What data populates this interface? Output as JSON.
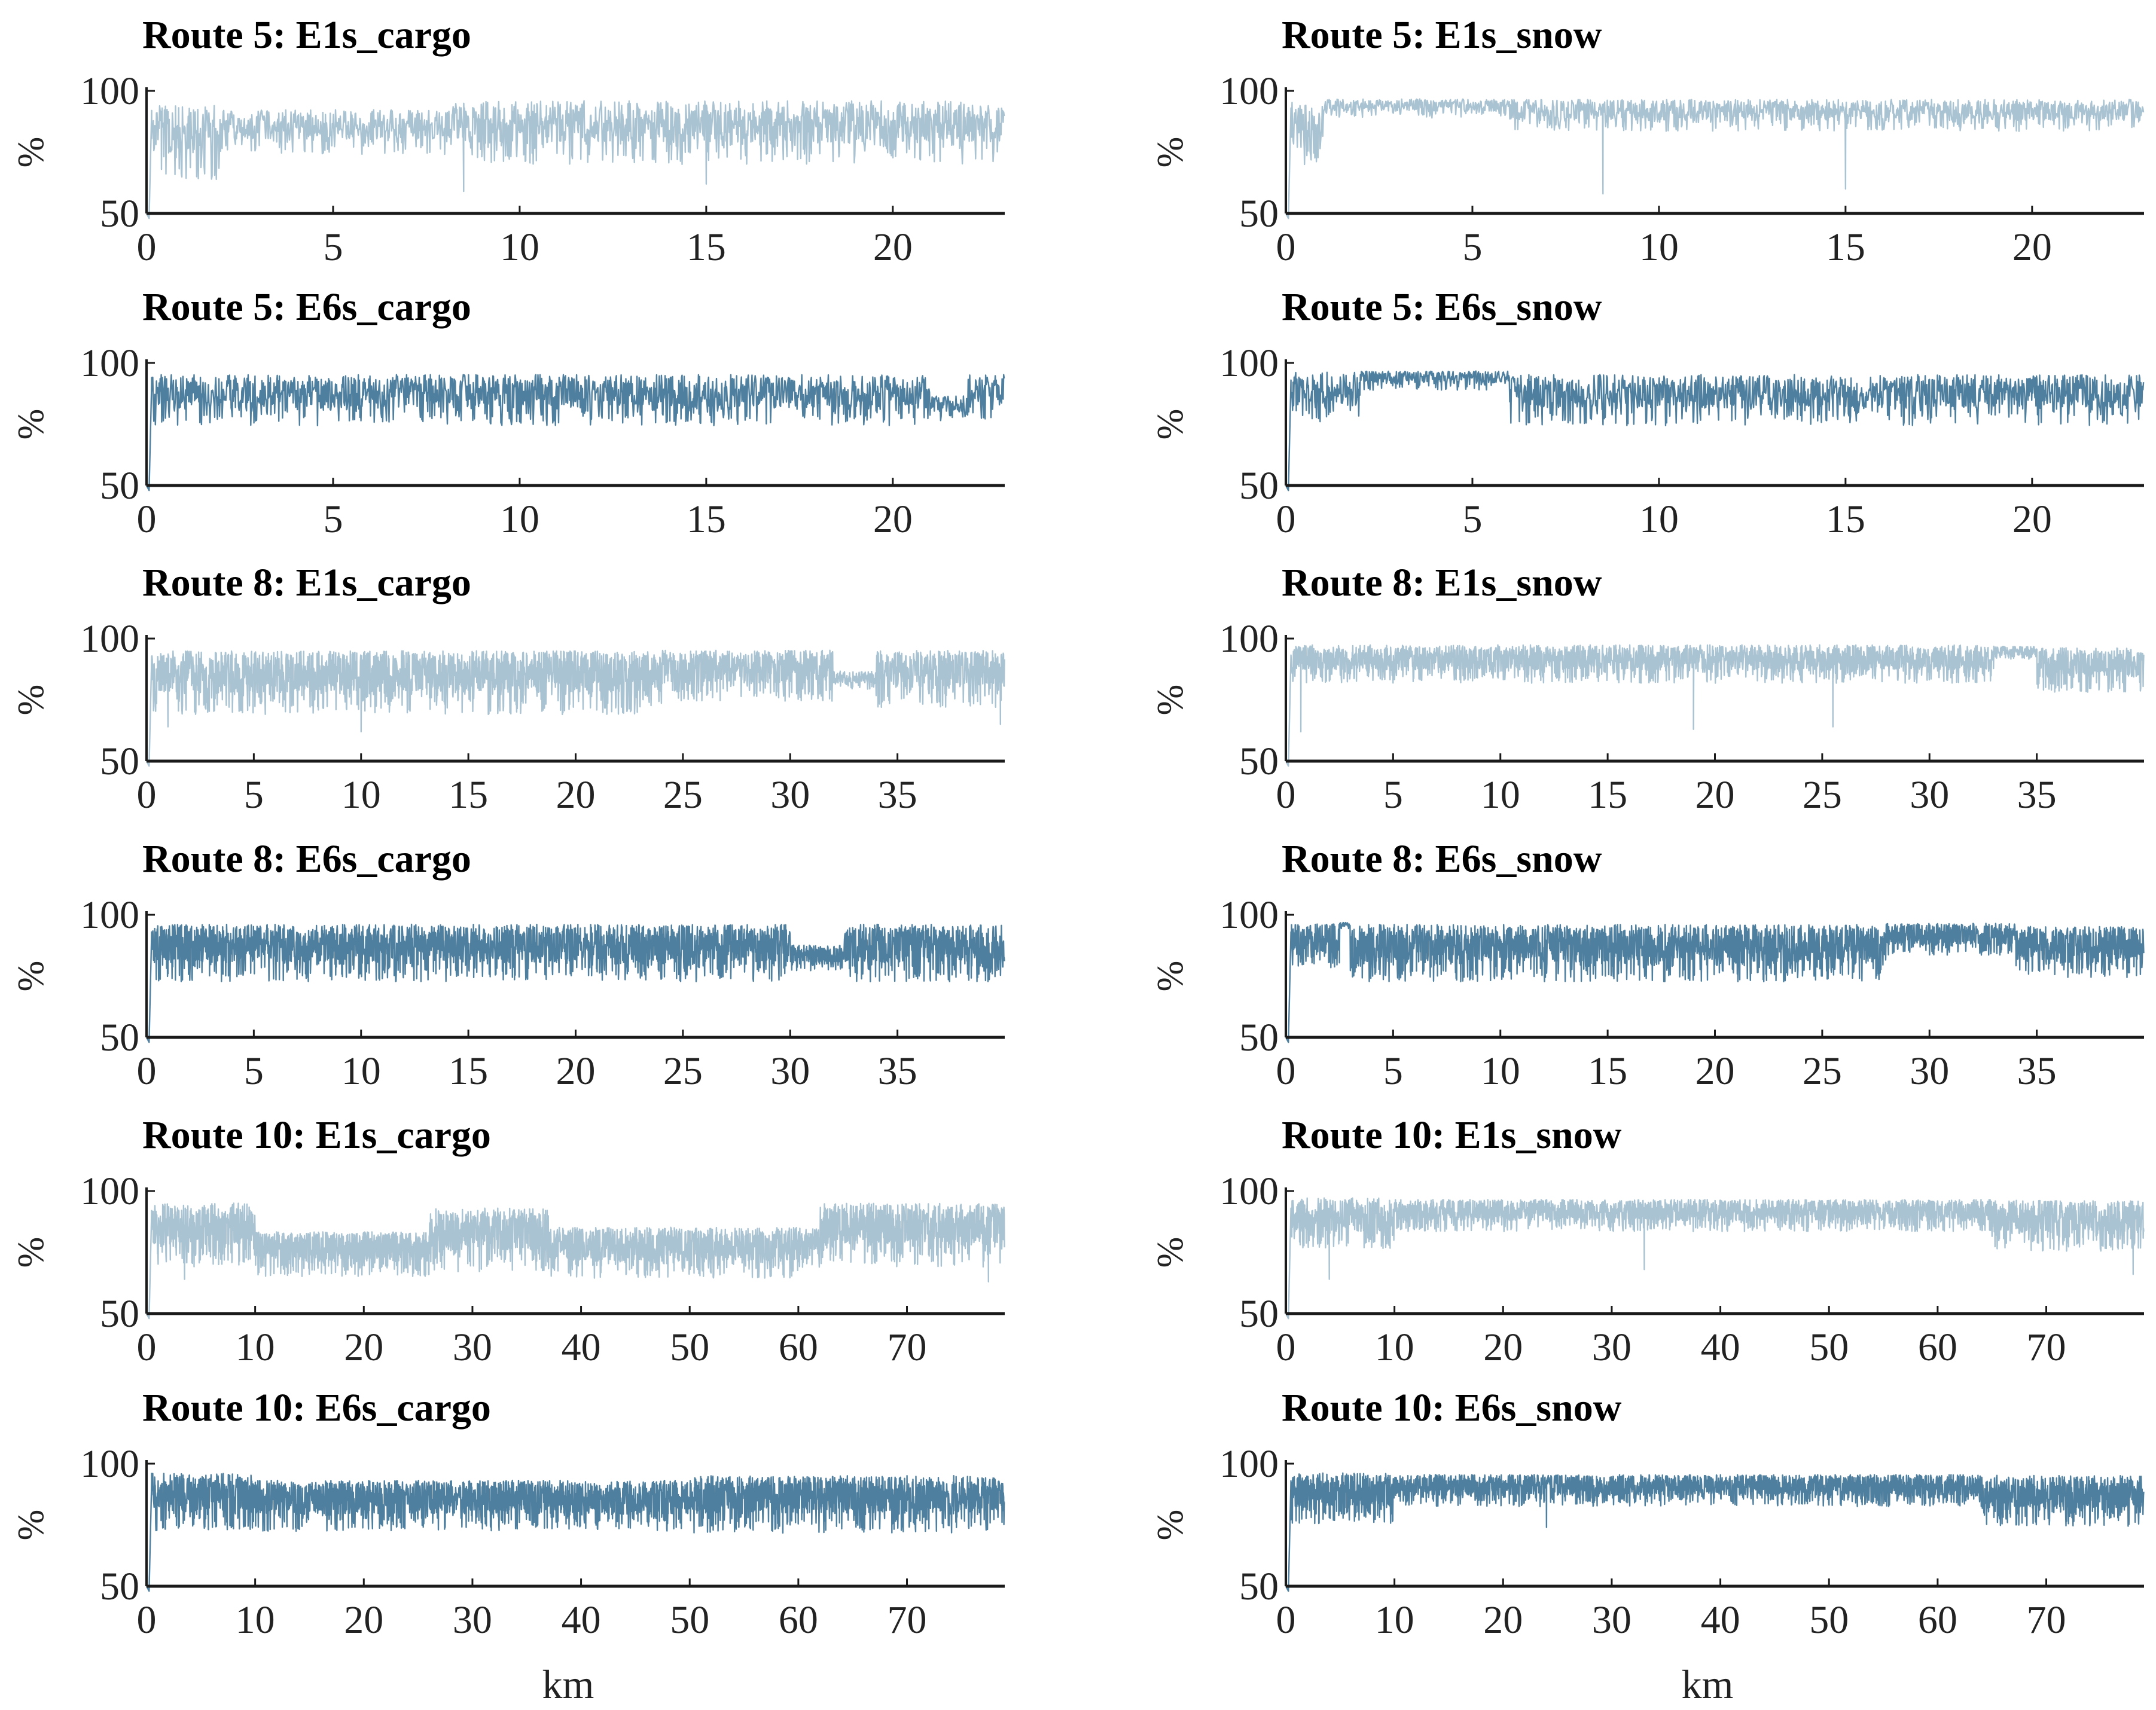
{
  "figure": {
    "x_label": "km",
    "y_label": "%",
    "colors": {
      "E1s": "#a9c3d2",
      "E6s": "#4f7f9e",
      "axis": "#1a1a1a"
    }
  },
  "chart_data": [
    {
      "type": "line",
      "title": "Route 5: E1s_cargo",
      "route": 5,
      "variant": "E1s",
      "load": "cargo",
      "xlim": [
        0,
        23
      ],
      "ylim": [
        50,
        100
      ],
      "xticks": [
        0,
        5,
        10,
        15,
        20
      ],
      "yticks": [
        50,
        100
      ],
      "xlabel": "",
      "ylabel": "%",
      "typical_range": [
        80,
        96
      ],
      "segments": [
        {
          "x": [
            0,
            2
          ],
          "mean": 84,
          "amp": 12
        },
        {
          "x": [
            2,
            8
          ],
          "mean": 86,
          "amp": 7
        },
        {
          "x": [
            8,
            22
          ],
          "mean": 87,
          "amp": 10
        },
        {
          "x": [
            22,
            23
          ],
          "mean": 86,
          "amp": 9
        }
      ],
      "dips": [
        {
          "x": 8.5,
          "y": 59
        },
        {
          "x": 15,
          "y": 62
        },
        {
          "x": 0.4,
          "y": 68
        }
      ]
    },
    {
      "type": "line",
      "title": "Route 5: E1s_snow",
      "route": 5,
      "variant": "E1s",
      "load": "snow",
      "xlim": [
        0,
        23
      ],
      "ylim": [
        50,
        100
      ],
      "xticks": [
        0,
        5,
        10,
        15,
        20
      ],
      "yticks": [
        50,
        100
      ],
      "xlabel": "",
      "ylabel": "%",
      "typical_range": [
        88,
        97
      ],
      "segments": [
        {
          "x": [
            0,
            1
          ],
          "mean": 88,
          "amp": 10
        },
        {
          "x": [
            1,
            6
          ],
          "mean": 94,
          "amp": 3
        },
        {
          "x": [
            6,
            23
          ],
          "mean": 92,
          "amp": 5
        }
      ],
      "dips": [
        {
          "x": 8.5,
          "y": 58
        },
        {
          "x": 15,
          "y": 60
        },
        {
          "x": 0.5,
          "y": 70
        }
      ]
    },
    {
      "type": "line",
      "title": "Route 5: E6s_cargo",
      "route": 5,
      "variant": "E6s",
      "load": "cargo",
      "xlim": [
        0,
        23
      ],
      "ylim": [
        50,
        100
      ],
      "xticks": [
        0,
        5,
        10,
        15,
        20
      ],
      "yticks": [
        50,
        100
      ],
      "xlabel": "",
      "ylabel": "%",
      "typical_range": [
        78,
        96
      ],
      "segments": [
        {
          "x": [
            0,
            21
          ],
          "mean": 88,
          "amp": 8
        },
        {
          "x": [
            21,
            22
          ],
          "mean": 83,
          "amp": 4
        },
        {
          "x": [
            22,
            23
          ],
          "mean": 88,
          "amp": 8
        }
      ],
      "dips": [
        {
          "x": 10,
          "y": 76
        }
      ]
    },
    {
      "type": "line",
      "title": "Route 5: E6s_snow",
      "route": 5,
      "variant": "E6s",
      "load": "snow",
      "xlim": [
        0,
        23
      ],
      "ylim": [
        50,
        100
      ],
      "xticks": [
        0,
        5,
        10,
        15,
        20
      ],
      "yticks": [
        50,
        100
      ],
      "xlabel": "",
      "ylabel": "%",
      "typical_range": [
        78,
        97
      ],
      "segments": [
        {
          "x": [
            0,
            2
          ],
          "mean": 89,
          "amp": 8
        },
        {
          "x": [
            2,
            6
          ],
          "mean": 94,
          "amp": 3
        },
        {
          "x": [
            6,
            23
          ],
          "mean": 88,
          "amp": 8
        }
      ],
      "dips": [
        {
          "x": 8.5,
          "y": 75
        }
      ]
    },
    {
      "type": "line",
      "title": "Route 8: E1s_cargo",
      "route": 8,
      "variant": "E1s",
      "load": "cargo",
      "xlim": [
        0,
        40
      ],
      "ylim": [
        50,
        100
      ],
      "xticks": [
        0,
        5,
        10,
        15,
        20,
        25,
        30,
        35
      ],
      "yticks": [
        50,
        100
      ],
      "xlabel": "",
      "ylabel": "%",
      "typical_range": [
        78,
        96
      ],
      "segments": [
        {
          "x": [
            0,
            24
          ],
          "mean": 86,
          "amp": 10
        },
        {
          "x": [
            24,
            32
          ],
          "mean": 88,
          "amp": 8
        },
        {
          "x": [
            32,
            34
          ],
          "mean": 84,
          "amp": 3
        },
        {
          "x": [
            34,
            40
          ],
          "mean": 87,
          "amp": 9
        }
      ],
      "dips": [
        {
          "x": 10,
          "y": 62
        },
        {
          "x": 1,
          "y": 64
        },
        {
          "x": 39.8,
          "y": 65
        }
      ]
    },
    {
      "type": "line",
      "title": "Route 8: E1s_snow",
      "route": 8,
      "variant": "E1s",
      "load": "snow",
      "xlim": [
        0,
        40
      ],
      "ylim": [
        50,
        100
      ],
      "xticks": [
        0,
        5,
        10,
        15,
        20,
        25,
        30,
        35
      ],
      "yticks": [
        50,
        100
      ],
      "xlabel": "",
      "ylabel": "%",
      "typical_range": [
        88,
        97
      ],
      "segments": [
        {
          "x": [
            0,
            33
          ],
          "mean": 92,
          "amp": 6
        },
        {
          "x": [
            33,
            35
          ],
          "mean": 95,
          "amp": 2
        },
        {
          "x": [
            35,
            40
          ],
          "mean": 90,
          "amp": 7
        }
      ],
      "dips": [
        {
          "x": 0.7,
          "y": 62
        },
        {
          "x": 19,
          "y": 63
        },
        {
          "x": 25.5,
          "y": 64
        }
      ]
    },
    {
      "type": "line",
      "title": "Route 8: E6s_cargo",
      "route": 8,
      "variant": "E6s",
      "load": "cargo",
      "xlim": [
        0,
        40
      ],
      "ylim": [
        50,
        100
      ],
      "xticks": [
        0,
        5,
        10,
        15,
        20,
        25,
        30,
        35
      ],
      "yticks": [
        50,
        100
      ],
      "xlabel": "",
      "ylabel": "%",
      "typical_range": [
        78,
        97
      ],
      "segments": [
        {
          "x": [
            0,
            30
          ],
          "mean": 88,
          "amp": 9
        },
        {
          "x": [
            30,
            32.5
          ],
          "mean": 84,
          "amp": 4
        },
        {
          "x": [
            32.5,
            40
          ],
          "mean": 88,
          "amp": 9
        }
      ],
      "dips": [
        {
          "x": 1,
          "y": 76
        }
      ]
    },
    {
      "type": "line",
      "title": "Route 8: E6s_snow",
      "route": 8,
      "variant": "E6s",
      "load": "snow",
      "xlim": [
        0,
        40
      ],
      "ylim": [
        50,
        100
      ],
      "xticks": [
        0,
        5,
        10,
        15,
        20,
        25,
        30,
        35
      ],
      "yticks": [
        50,
        100
      ],
      "xlabel": "",
      "ylabel": "%",
      "typical_range": [
        78,
        97
      ],
      "segments": [
        {
          "x": [
            0,
            2.5
          ],
          "mean": 90,
          "amp": 7
        },
        {
          "x": [
            2.5,
            3
          ],
          "mean": 96,
          "amp": 1
        },
        {
          "x": [
            3,
            28
          ],
          "mean": 88,
          "amp": 9
        },
        {
          "x": [
            28,
            34
          ],
          "mean": 92,
          "amp": 5
        },
        {
          "x": [
            34,
            40
          ],
          "mean": 88,
          "amp": 8
        }
      ],
      "dips": [
        {
          "x": 25,
          "y": 75
        }
      ]
    },
    {
      "type": "line",
      "title": "Route 10: E1s_cargo",
      "route": 10,
      "variant": "E1s",
      "load": "cargo",
      "xlim": [
        0,
        79
      ],
      "ylim": [
        50,
        100
      ],
      "xticks": [
        0,
        10,
        20,
        30,
        40,
        50,
        60,
        70
      ],
      "yticks": [
        50,
        100
      ],
      "xlabel": "",
      "ylabel": "%",
      "typical_range": [
        70,
        96
      ],
      "segments": [
        {
          "x": [
            0,
            10
          ],
          "mean": 86,
          "amp": 10
        },
        {
          "x": [
            10,
            26
          ],
          "mean": 77,
          "amp": 7
        },
        {
          "x": [
            26,
            37
          ],
          "mean": 84,
          "amp": 10
        },
        {
          "x": [
            37,
            62
          ],
          "mean": 78,
          "amp": 8
        },
        {
          "x": [
            62,
            79
          ],
          "mean": 86,
          "amp": 10
        }
      ],
      "dips": [
        {
          "x": 3.5,
          "y": 64
        },
        {
          "x": 77.5,
          "y": 63
        }
      ]
    },
    {
      "type": "line",
      "title": "Route 10: E1s_snow",
      "route": 10,
      "variant": "E1s",
      "load": "snow",
      "xlim": [
        0,
        79
      ],
      "ylim": [
        50,
        100
      ],
      "xticks": [
        0,
        10,
        20,
        30,
        40,
        50,
        60,
        70
      ],
      "yticks": [
        50,
        100
      ],
      "xlabel": "",
      "ylabel": "%",
      "typical_range": [
        86,
        97
      ],
      "segments": [
        {
          "x": [
            0,
            10
          ],
          "mean": 90,
          "amp": 8
        },
        {
          "x": [
            10,
            65
          ],
          "mean": 92,
          "amp": 5
        },
        {
          "x": [
            65,
            79
          ],
          "mean": 89,
          "amp": 8
        }
      ],
      "dips": [
        {
          "x": 4,
          "y": 64
        },
        {
          "x": 33,
          "y": 68
        },
        {
          "x": 78,
          "y": 66
        }
      ]
    },
    {
      "type": "line",
      "title": "Route 10: E6s_cargo",
      "route": 10,
      "variant": "E6s",
      "load": "cargo",
      "xlim": [
        0,
        79
      ],
      "ylim": [
        50,
        100
      ],
      "xticks": [
        0,
        10,
        20,
        30,
        40,
        50,
        60,
        70
      ],
      "yticks": [
        50,
        100
      ],
      "xlabel": "",
      "ylabel": "%",
      "typical_range": [
        76,
        97
      ],
      "segments": [
        {
          "x": [
            0,
            10
          ],
          "mean": 88,
          "amp": 9
        },
        {
          "x": [
            10,
            50
          ],
          "mean": 86,
          "amp": 8
        },
        {
          "x": [
            50,
            79
          ],
          "mean": 87,
          "amp": 9
        }
      ],
      "dips": [
        {
          "x": 66,
          "y": 74
        }
      ]
    },
    {
      "type": "line",
      "title": "Route 10: E6s_snow",
      "route": 10,
      "variant": "E6s",
      "load": "snow",
      "xlim": [
        0,
        79
      ],
      "ylim": [
        50,
        100
      ],
      "xticks": [
        0,
        10,
        20,
        30,
        40,
        50,
        60,
        70
      ],
      "yticks": [
        50,
        100
      ],
      "xlabel": "",
      "ylabel": "%",
      "typical_range": [
        76,
        97
      ],
      "segments": [
        {
          "x": [
            0,
            10
          ],
          "mean": 89,
          "amp": 8
        },
        {
          "x": [
            10,
            64
          ],
          "mean": 91,
          "amp": 5
        },
        {
          "x": [
            64,
            79
          ],
          "mean": 88,
          "amp": 8
        }
      ],
      "dips": [
        {
          "x": 24,
          "y": 74
        }
      ]
    }
  ]
}
